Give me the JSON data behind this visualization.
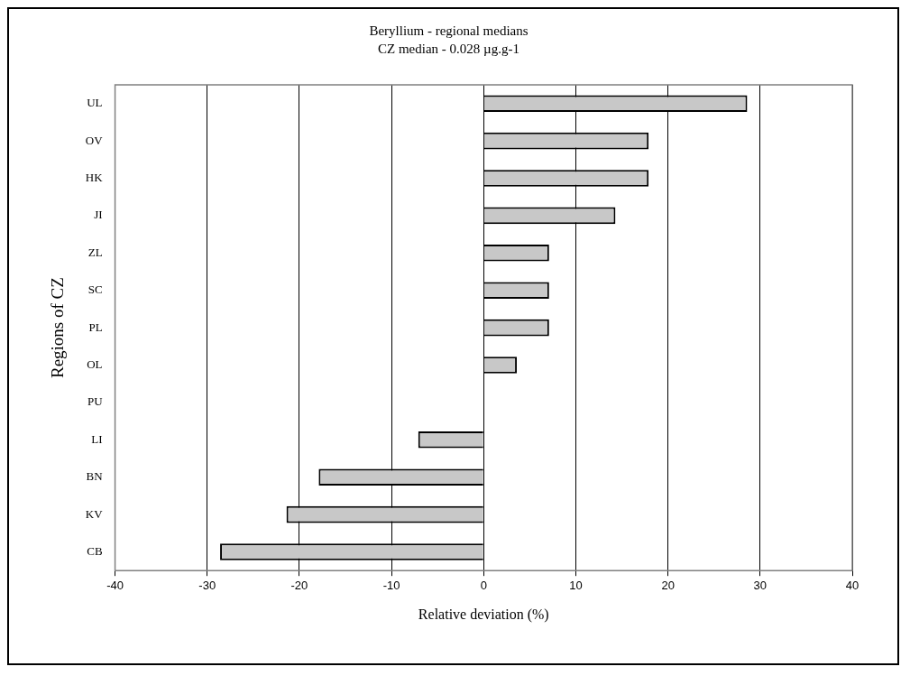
{
  "chart_data": {
    "type": "bar",
    "orientation": "horizontal",
    "title": "Beryllium - regional medians",
    "subtitle": "CZ median - 0.028 µg.g-1",
    "xlabel": "Relative deviation (%)",
    "ylabel": "Regions of CZ",
    "categories": [
      "UL",
      "OV",
      "HK",
      "JI",
      "ZL",
      "SC",
      "PL",
      "OL",
      "PU",
      "LI",
      "BN",
      "KV",
      "CB"
    ],
    "values": [
      28.6,
      17.9,
      17.9,
      14.3,
      7.1,
      7.1,
      7.1,
      3.6,
      0,
      -7.1,
      -17.9,
      -21.4,
      -28.6
    ],
    "color": "#c8c8c8",
    "xlim": [
      -40,
      40
    ],
    "xticks": [
      -40,
      -30,
      -20,
      -10,
      0,
      10,
      20,
      30,
      40
    ],
    "grid": "x",
    "legend": false
  }
}
